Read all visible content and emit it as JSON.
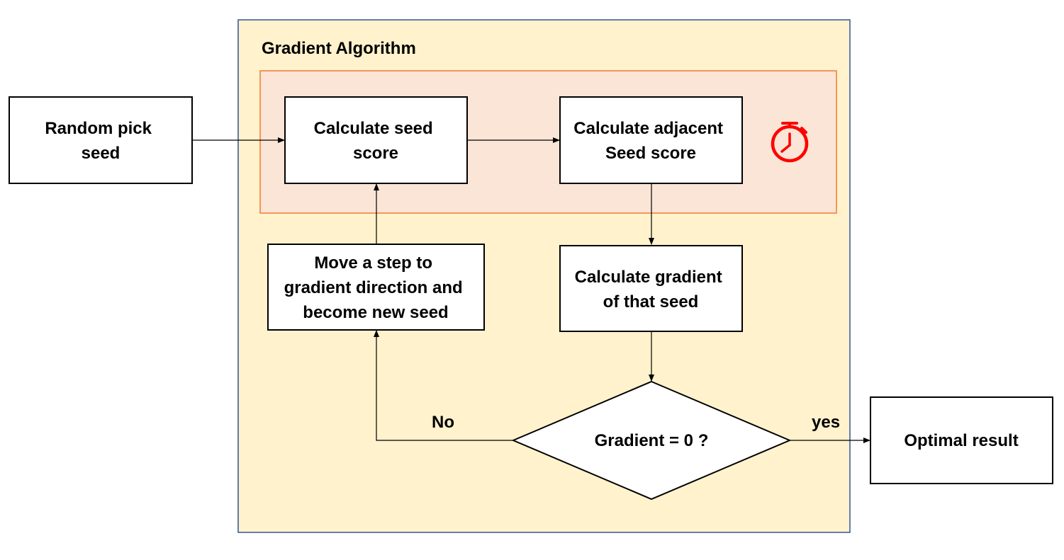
{
  "diagram": {
    "container_title": "Gradient Algorithm",
    "nodes": {
      "random_pick_seed": {
        "lines": [
          "Random pick",
          "seed"
        ]
      },
      "calc_seed_score": {
        "lines": [
          "Calculate seed",
          "score"
        ]
      },
      "calc_adjacent_score": {
        "lines": [
          "Calculate adjacent",
          "Seed score"
        ]
      },
      "move_step": {
        "lines": [
          "Move a step to",
          "gradient direction and",
          "become new seed"
        ]
      },
      "calc_gradient": {
        "lines": [
          "Calculate gradient",
          "of that seed"
        ]
      },
      "decision": {
        "text": "Gradient = 0 ?"
      },
      "optimal_result": {
        "text": "Optimal result"
      }
    },
    "edge_labels": {
      "no": "No",
      "yes": "yes"
    },
    "icons": {
      "timer": "stopwatch-icon"
    },
    "colors": {
      "container_fill": "#FFF2CC",
      "container_border": "#2F5597",
      "highlight_fill": "#FBE5D6",
      "highlight_border": "#ED7D31",
      "timer": "#FF0000",
      "node_fill": "#FFFFFF",
      "node_border": "#000000",
      "arrow": "#000000"
    }
  }
}
